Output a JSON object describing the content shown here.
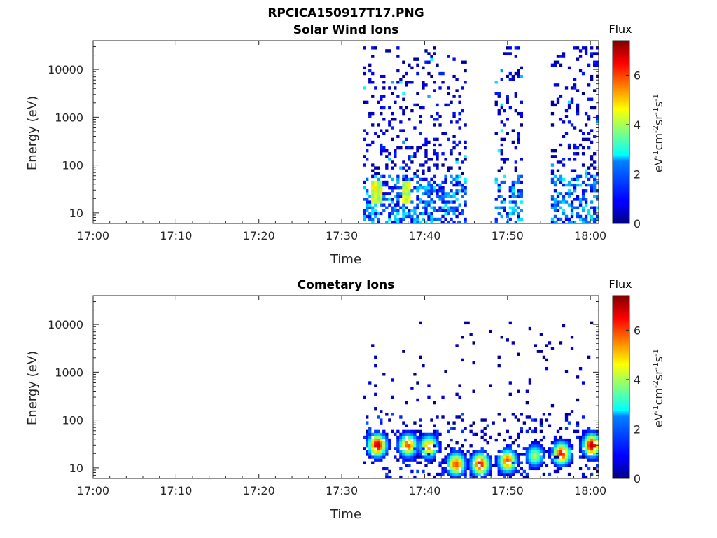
{
  "figure": {
    "filename_title": "RPCICA150917T17.PNG"
  },
  "chart_data": [
    {
      "type": "heatmap",
      "title": "Solar Wind Ions",
      "xlabel": "Time",
      "ylabel": "Energy (eV)",
      "x_ticks": [
        "17:00",
        "17:10",
        "17:20",
        "17:30",
        "17:40",
        "17:50",
        "18:00"
      ],
      "y_ticks": [
        "10",
        "100",
        "1000",
        "10000"
      ],
      "y_scale": "log",
      "xlim": [
        "17:00",
        "18:01"
      ],
      "ylim": [
        6,
        40000
      ],
      "colorbar": {
        "title": "Flux",
        "unit_base": "eV",
        "unit_exp1": "-1",
        "unit_mid": "cm",
        "unit_exp2": "-2",
        "unit_sr": "sr",
        "unit_exp3": "-1",
        "unit_s": "s",
        "unit_exp4": "-1",
        "range": [
          0,
          7.4
        ],
        "ticks": [
          "0",
          "2",
          "4",
          "6"
        ]
      },
      "data_windows_minutes": [
        [
          32.4,
          45.2
        ],
        [
          48.5,
          51.8
        ],
        [
          55.2,
          58.0
        ],
        [
          58.0,
          61.0
        ]
      ],
      "notes_values": "Sparse low-flux (0-1.5) counts at 100 eV-30 keV during data windows; moderate flux (2-5) at 10-50 eV near 17:34 and 17:38"
    },
    {
      "type": "heatmap",
      "title": "Cometary Ions",
      "xlabel": "Time",
      "ylabel": "Energy (eV)",
      "x_ticks": [
        "17:00",
        "17:10",
        "17:20",
        "17:30",
        "17:40",
        "17:50",
        "18:00"
      ],
      "y_ticks": [
        "10",
        "100",
        "1000",
        "10000"
      ],
      "y_scale": "log",
      "xlim": [
        "17:00",
        "18:01"
      ],
      "ylim": [
        6,
        40000
      ],
      "colorbar": {
        "title": "Flux",
        "unit_base": "eV",
        "unit_exp1": "-1",
        "unit_mid": "cm",
        "unit_exp2": "-2",
        "unit_sr": "sr",
        "unit_exp3": "-1",
        "unit_s": "s",
        "unit_exp4": "-1",
        "range": [
          0,
          7.4
        ],
        "ticks": [
          "0",
          "2",
          "4",
          "6"
        ]
      },
      "data_windows_minutes": [
        [
          32.4,
          61.0
        ]
      ],
      "hotspots": [
        {
          "time_min": 34.3,
          "energy_ev": 30,
          "flux": 7.0
        },
        {
          "time_min": 38.0,
          "energy_ev": 30,
          "flux": 6.0
        },
        {
          "time_min": 40.5,
          "energy_ev": 28,
          "flux": 5.5
        },
        {
          "time_min": 43.8,
          "energy_ev": 12,
          "flux": 6.0
        },
        {
          "time_min": 46.7,
          "energy_ev": 12,
          "flux": 6.5
        },
        {
          "time_min": 50.0,
          "energy_ev": 14,
          "flux": 6.0
        },
        {
          "time_min": 53.3,
          "energy_ev": 18,
          "flux": 4.0
        },
        {
          "time_min": 56.5,
          "energy_ev": 20,
          "flux": 6.5
        },
        {
          "time_min": 60.2,
          "energy_ev": 30,
          "flux": 7.0
        }
      ]
    }
  ]
}
